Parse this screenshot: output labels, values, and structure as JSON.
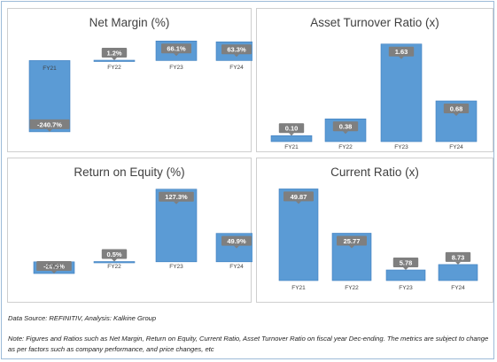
{
  "colors": {
    "bar": "#5b9bd5",
    "bar_dark": "#3f7fbf",
    "label_bg": "#7f7f7f",
    "label_text": "#ffffff"
  },
  "source_note": "Data Source: REFINITIV, Analysis: Kalkine Group",
  "note": "Note: Figures and Ratios such as Net Margin, Return on Equity, Current Ratio, Asset Turnover Ratio on fiscal year Dec-ending. The metrics are subject to change as per factors such as company performance, and price changes, etc",
  "chart_data": [
    {
      "id": "net-margin",
      "type": "bar",
      "title": "Net Margin (%)",
      "categories": [
        "FY21",
        "FY22",
        "FY23",
        "FY24"
      ],
      "values": [
        -240.7,
        1.2,
        66.1,
        63.3
      ],
      "labels": [
        "-240.7%",
        "1.2%",
        "66.1%",
        "63.3%"
      ],
      "ylim": [
        -250,
        70
      ],
      "grid": false,
      "legend": "none"
    },
    {
      "id": "asset-turnover",
      "type": "bar",
      "title": "Asset Turnover Ratio (x)",
      "categories": [
        "FY21",
        "FY22",
        "FY23",
        "FY24"
      ],
      "values": [
        0.1,
        0.38,
        1.63,
        0.68
      ],
      "labels": [
        "0.10",
        "0.38",
        "1.63",
        "0.68"
      ],
      "ylim": [
        0,
        1.7
      ],
      "grid": false,
      "legend": "none"
    },
    {
      "id": "roe",
      "type": "bar",
      "title": "Return on Equity (%)",
      "categories": [
        "FY21",
        "FY22",
        "FY23",
        "FY24"
      ],
      "values": [
        -20.5,
        0.5,
        127.3,
        49.9
      ],
      "labels": [
        "-20.5%",
        "0.5%",
        "127.3%",
        "49.9%"
      ],
      "ylim": [
        -22,
        130
      ],
      "grid": false,
      "legend": "none"
    },
    {
      "id": "current-ratio",
      "type": "bar",
      "title": "Current Ratio (x)",
      "categories": [
        "FY21",
        "FY22",
        "FY23",
        "FY24"
      ],
      "values": [
        49.87,
        25.77,
        5.78,
        8.73
      ],
      "labels": [
        "49.87",
        "25.77",
        "5.78",
        "8.73"
      ],
      "ylim": [
        0,
        52
      ],
      "grid": false,
      "legend": "none"
    }
  ]
}
